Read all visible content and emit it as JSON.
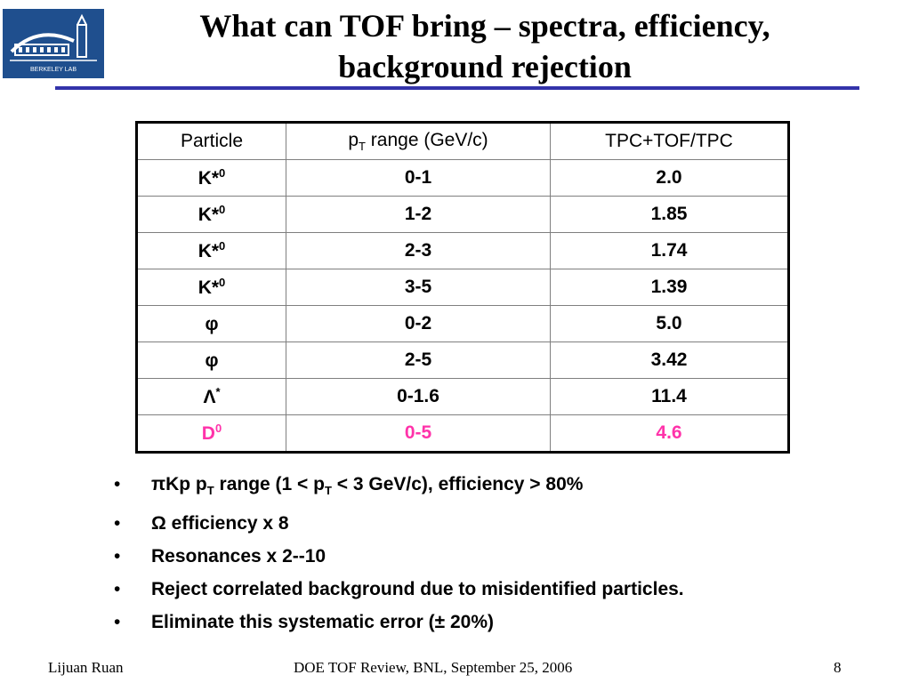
{
  "slide": {
    "title_line1": "What can TOF bring – spectra, efficiency,",
    "title_line2": "background rejection",
    "logo_caption": "BERKELEY LAB"
  },
  "table": {
    "header": {
      "particle": "Particle",
      "pt_prefix": "p",
      "pt_sub": "T",
      "pt_suffix": " range (GeV/c)",
      "ratio": "TPC+TOF/TPC"
    },
    "rows": [
      {
        "particle_base": "K*",
        "particle_sup": "0",
        "pt": "0-1",
        "ratio": "2.0"
      },
      {
        "particle_base": "K*",
        "particle_sup": "0",
        "pt": "1-2",
        "ratio": "1.85"
      },
      {
        "particle_base": "K*",
        "particle_sup": "0",
        "pt": "2-3",
        "ratio": "1.74"
      },
      {
        "particle_base": "K*",
        "particle_sup": "0",
        "pt": "3-5",
        "ratio": "1.39"
      },
      {
        "particle_base": "φ",
        "particle_sup": "",
        "pt": "0-2",
        "ratio": "5.0"
      },
      {
        "particle_base": "φ",
        "particle_sup": "",
        "pt": "2-5",
        "ratio": "3.42"
      },
      {
        "particle_base": "Λ",
        "particle_sup": "*",
        "pt": "0-1.6",
        "ratio": "11.4"
      },
      {
        "particle_base": "D",
        "particle_sup": "0",
        "pt": "0-5",
        "ratio": "4.6"
      }
    ],
    "highlight_color": "#ff33aa"
  },
  "bullets": {
    "marker": "•",
    "b1": {
      "a": "πKp  p",
      "sub1": "T",
      "b": " range (1 < p",
      "sub2": "T",
      "c": " < 3 GeV/c), efficiency > 80%"
    },
    "b2": "Ω efficiency x 8",
    "b3": "Resonances x 2--10",
    "b4": "Reject correlated background due to misidentified particles.",
    "b5": "Eliminate this systematic error (± 20%)"
  },
  "footer": {
    "author": "Lijuan Ruan",
    "event": "DOE TOF Review, BNL, September 25, 2006",
    "page": "8"
  }
}
